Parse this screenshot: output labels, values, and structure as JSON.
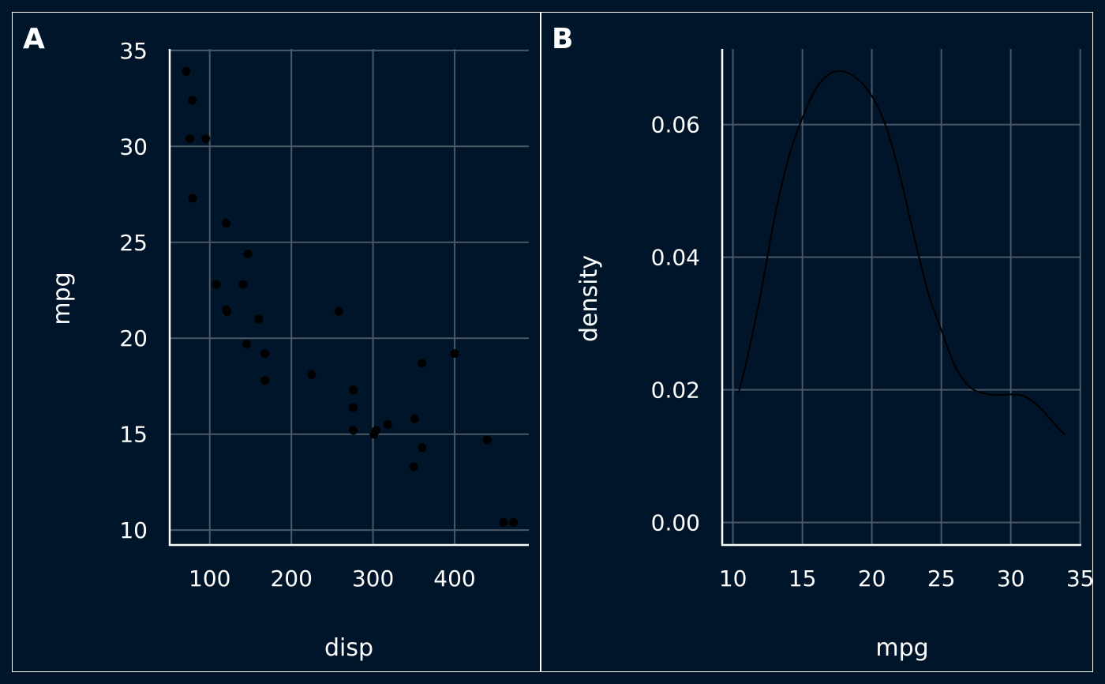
{
  "colors": {
    "background": "#001529",
    "panel_border": "#ffffff",
    "grid": "#4a5868",
    "axis": "#ffffff",
    "text": "#ffffff",
    "marks": "#000000"
  },
  "panels": [
    {
      "tag": "A"
    },
    {
      "tag": "B"
    }
  ],
  "chart_data": [
    {
      "type": "scatter",
      "tag": "A",
      "xlabel": "disp",
      "ylabel": "mpg",
      "xlim": [
        50.95,
        490.85
      ],
      "ylim": [
        9.225,
        35.075
      ],
      "xticks": [
        100,
        200,
        300,
        400
      ],
      "yticks": [
        10,
        15,
        20,
        25,
        30,
        35
      ],
      "grid": true,
      "points": [
        [
          160,
          21.0
        ],
        [
          160,
          21.0
        ],
        [
          108,
          22.8
        ],
        [
          258,
          21.4
        ],
        [
          360,
          18.7
        ],
        [
          225,
          18.1
        ],
        [
          360,
          14.3
        ],
        [
          146.7,
          24.4
        ],
        [
          140.8,
          22.8
        ],
        [
          167.6,
          19.2
        ],
        [
          167.6,
          17.8
        ],
        [
          275.8,
          16.4
        ],
        [
          275.8,
          17.3
        ],
        [
          275.8,
          15.2
        ],
        [
          472,
          10.4
        ],
        [
          460,
          10.4
        ],
        [
          440,
          14.7
        ],
        [
          78.7,
          32.4
        ],
        [
          75.7,
          30.4
        ],
        [
          71.1,
          33.9
        ],
        [
          120.1,
          21.5
        ],
        [
          318,
          15.5
        ],
        [
          304,
          15.2
        ],
        [
          350,
          13.3
        ],
        [
          400,
          19.2
        ],
        [
          79,
          27.3
        ],
        [
          120.3,
          26.0
        ],
        [
          95.1,
          30.4
        ],
        [
          351,
          15.8
        ],
        [
          145,
          19.7
        ],
        [
          301,
          15.0
        ],
        [
          121,
          21.4
        ]
      ]
    },
    {
      "type": "line",
      "tag": "B",
      "xlabel": "mpg",
      "ylabel": "density",
      "xlim": [
        9.225,
        35.075
      ],
      "ylim": [
        -0.0034,
        0.0714
      ],
      "xticks": [
        10,
        15,
        20,
        25,
        30,
        35
      ],
      "yticks": [
        0.0,
        0.02,
        0.04,
        0.06
      ],
      "ytick_labels": [
        "0.00",
        "0.02",
        "0.04",
        "0.06"
      ],
      "grid": true,
      "series": [
        {
          "x": [
            10.4,
            11,
            12,
            13,
            14,
            15,
            16,
            17,
            18,
            19,
            20,
            21,
            22,
            23,
            24,
            25,
            26,
            27,
            28,
            29,
            30,
            31,
            32,
            33,
            33.9
          ],
          "values": [
            0.0195,
            0.0245,
            0.0345,
            0.046,
            0.055,
            0.061,
            0.0655,
            0.0677,
            0.068,
            0.0668,
            0.0643,
            0.0598,
            0.0525,
            0.0435,
            0.035,
            0.029,
            0.0235,
            0.0205,
            0.0195,
            0.0192,
            0.0193,
            0.019,
            0.0175,
            0.0152,
            0.0132
          ]
        }
      ]
    }
  ]
}
